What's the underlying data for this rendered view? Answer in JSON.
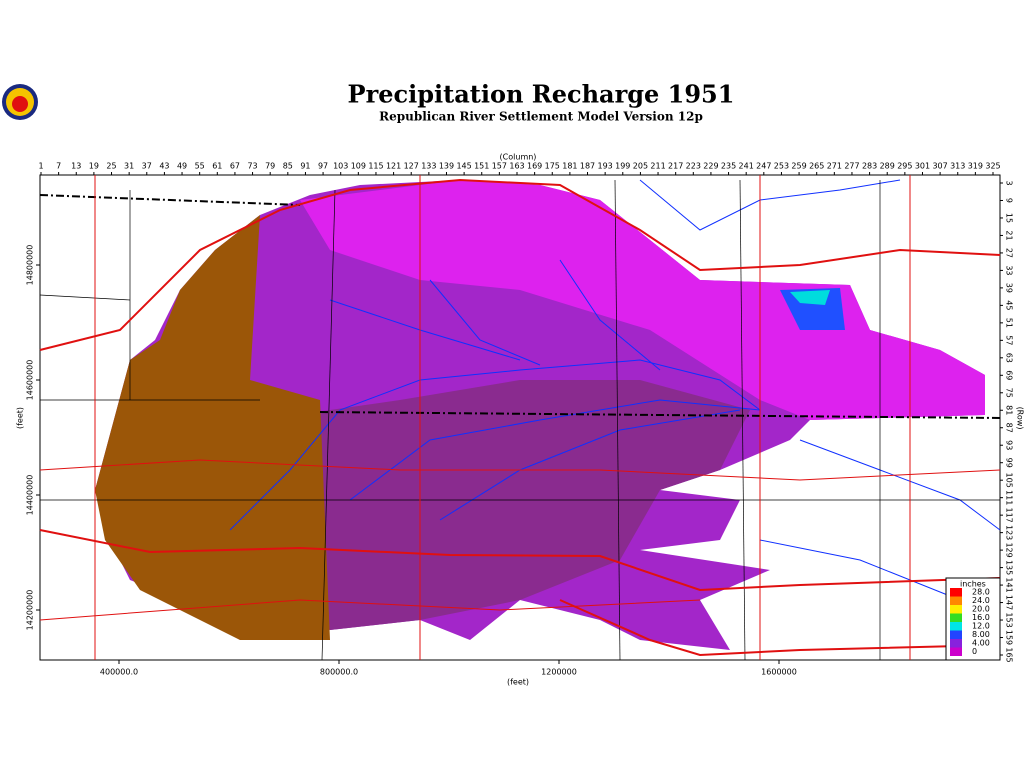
{
  "map": {
    "title": "Precipitation Recharge 1951",
    "subtitle": "Republican River Settlement Model Version 12p",
    "column_label": "(Column)",
    "columns": [
      1,
      7,
      13,
      19,
      25,
      31,
      37,
      43,
      49,
      55,
      61,
      67,
      73,
      79,
      85,
      91,
      97,
      103,
      109,
      115,
      121,
      127,
      133,
      139,
      145,
      151,
      157,
      163,
      169,
      175,
      181,
      187,
      193,
      199,
      205,
      211,
      217,
      223,
      229,
      235,
      241,
      247,
      253,
      259,
      265,
      271,
      277,
      283,
      289,
      295,
      301,
      307,
      313,
      319,
      325
    ],
    "row_label": "(Row)",
    "rows": [
      3,
      9,
      15,
      21,
      27,
      33,
      39,
      45,
      51,
      57,
      63,
      69,
      75,
      81,
      87,
      93,
      99,
      105,
      111,
      117,
      123,
      129,
      135,
      141,
      147,
      153,
      159,
      165
    ],
    "x_label": "(feet)",
    "xticks": [
      {
        "value": 400000,
        "label": "400000.0"
      },
      {
        "value": 800000,
        "label": "800000.0"
      },
      1200000,
      1600000
    ],
    "y_label": "(feet)",
    "yticks": [
      14800000,
      14600000,
      14400000,
      14200000
    ],
    "legend": {
      "title": "inches",
      "items": [
        {
          "label": "28.0",
          "color": "#ff0000"
        },
        {
          "label": "24.0",
          "color": "#ff8800"
        },
        {
          "label": "20.0",
          "color": "#ffee00"
        },
        {
          "label": "16.0",
          "color": "#33dd22"
        },
        {
          "label": "12.0",
          "color": "#00e5e5"
        },
        {
          "label": "8.00",
          "color": "#2244ff"
        },
        {
          "label": "4.00",
          "color": "#8822dd"
        },
        {
          "label": "0",
          "color": "#cc00cc"
        }
      ]
    }
  }
}
